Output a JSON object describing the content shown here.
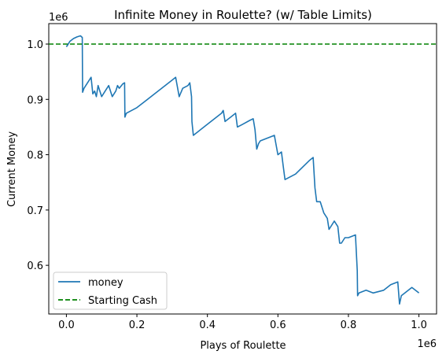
{
  "chart_data": {
    "type": "line",
    "title": "Infinite Money in Roulette? (w/ Table Limits)",
    "xlabel": "Plays of Roulette",
    "ylabel": "Current Money",
    "x_offset_label": "1e6",
    "y_offset_label": "1e6",
    "xlim": [
      -0.05,
      1.05
    ],
    "ylim": [
      0.512,
      1.037
    ],
    "x_ticks": [
      0.0,
      0.2,
      0.4,
      0.6,
      0.8,
      1.0
    ],
    "x_tick_labels": [
      "0.0",
      "0.2",
      "0.4",
      "0.6",
      "0.8",
      "1.0"
    ],
    "y_ticks": [
      0.6,
      0.7,
      0.8,
      0.9,
      1.0
    ],
    "y_tick_labels": [
      "0.6",
      "0.7",
      "0.8",
      "0.9",
      "1.0"
    ],
    "grid": false,
    "legend_position": "bottom-left",
    "series": [
      {
        "name": "money",
        "color": "#1f77b4",
        "style": "solid",
        "x": [
          0.0,
          0.005,
          0.01,
          0.02,
          0.03,
          0.04,
          0.045,
          0.046,
          0.05,
          0.06,
          0.07,
          0.075,
          0.08,
          0.085,
          0.09,
          0.1,
          0.11,
          0.12,
          0.13,
          0.14,
          0.145,
          0.15,
          0.16,
          0.165,
          0.166,
          0.17,
          0.2,
          0.25,
          0.3,
          0.31,
          0.32,
          0.33,
          0.345,
          0.35,
          0.355,
          0.356,
          0.36,
          0.4,
          0.44,
          0.445,
          0.45,
          0.47,
          0.48,
          0.485,
          0.5,
          0.52,
          0.53,
          0.535,
          0.54,
          0.545,
          0.55,
          0.57,
          0.59,
          0.6,
          0.61,
          0.615,
          0.62,
          0.65,
          0.69,
          0.7,
          0.705,
          0.71,
          0.72,
          0.73,
          0.74,
          0.745,
          0.76,
          0.77,
          0.775,
          0.78,
          0.79,
          0.8,
          0.82,
          0.825,
          0.826,
          0.83,
          0.85,
          0.87,
          0.9,
          0.92,
          0.94,
          0.945,
          0.95,
          0.96,
          0.98,
          1.0
        ],
        "y": [
          0.995,
          1.0,
          1.005,
          1.01,
          1.013,
          1.015,
          1.012,
          0.913,
          0.92,
          0.93,
          0.94,
          0.91,
          0.915,
          0.905,
          0.925,
          0.905,
          0.915,
          0.925,
          0.905,
          0.915,
          0.925,
          0.92,
          0.928,
          0.93,
          0.868,
          0.875,
          0.885,
          0.91,
          0.935,
          0.94,
          0.905,
          0.92,
          0.925,
          0.93,
          0.905,
          0.86,
          0.835,
          0.855,
          0.875,
          0.88,
          0.86,
          0.87,
          0.875,
          0.85,
          0.855,
          0.862,
          0.865,
          0.845,
          0.81,
          0.82,
          0.825,
          0.83,
          0.835,
          0.8,
          0.805,
          0.78,
          0.755,
          0.765,
          0.79,
          0.795,
          0.74,
          0.715,
          0.715,
          0.695,
          0.685,
          0.665,
          0.68,
          0.67,
          0.64,
          0.64,
          0.65,
          0.65,
          0.655,
          0.59,
          0.545,
          0.55,
          0.555,
          0.55,
          0.555,
          0.565,
          0.57,
          0.53,
          0.545,
          0.55,
          0.56,
          0.55
        ]
      },
      {
        "name": "Starting Cash",
        "color": "#008000",
        "style": "dashed",
        "x": [
          -0.05,
          1.05
        ],
        "y": [
          1.0,
          1.0
        ]
      }
    ]
  }
}
